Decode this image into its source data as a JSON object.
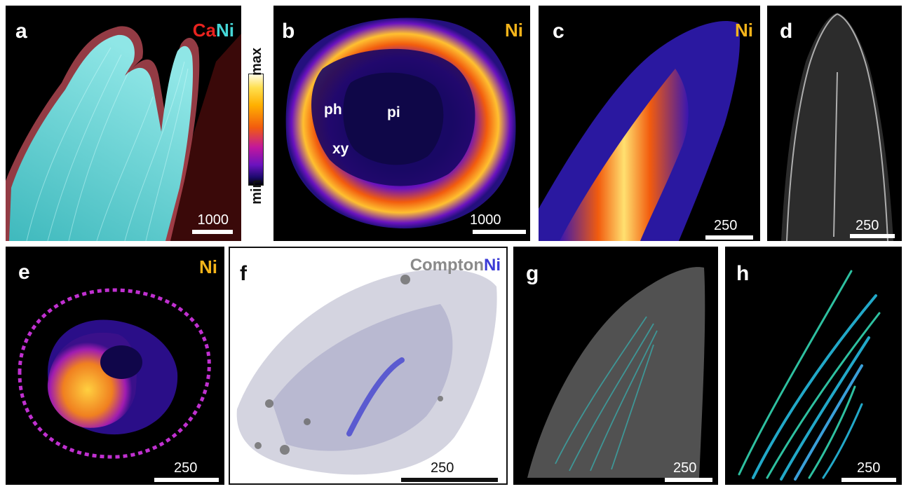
{
  "panels": {
    "a": {
      "letter": "a",
      "tag_parts": [
        "Ca",
        "Ni"
      ],
      "scale": "1000"
    },
    "b": {
      "letter": "b",
      "tag": "Ni",
      "scale": "1000",
      "regions": {
        "ph": "ph",
        "pi": "pi",
        "xy": "xy"
      }
    },
    "c": {
      "letter": "c",
      "tag": "Ni",
      "scale": "250"
    },
    "d": {
      "letter": "d",
      "scale": "250"
    },
    "e": {
      "letter": "e",
      "tag": "Ni",
      "scale": "250"
    },
    "f": {
      "letter": "f",
      "tag_parts": [
        "Compton",
        "Ni"
      ],
      "scale": "250"
    },
    "g": {
      "letter": "g",
      "scale": "250"
    },
    "h": {
      "letter": "h",
      "scale": "250"
    }
  },
  "colorbar": {
    "max_label": "max",
    "min_label": "min"
  },
  "colors": {
    "ca": "#e8231f",
    "ni_cyan": "#45d6d6",
    "ni_gold": "#f4b41a",
    "compton": "#8a8a8a",
    "ni_blue": "#3b3bd6"
  }
}
